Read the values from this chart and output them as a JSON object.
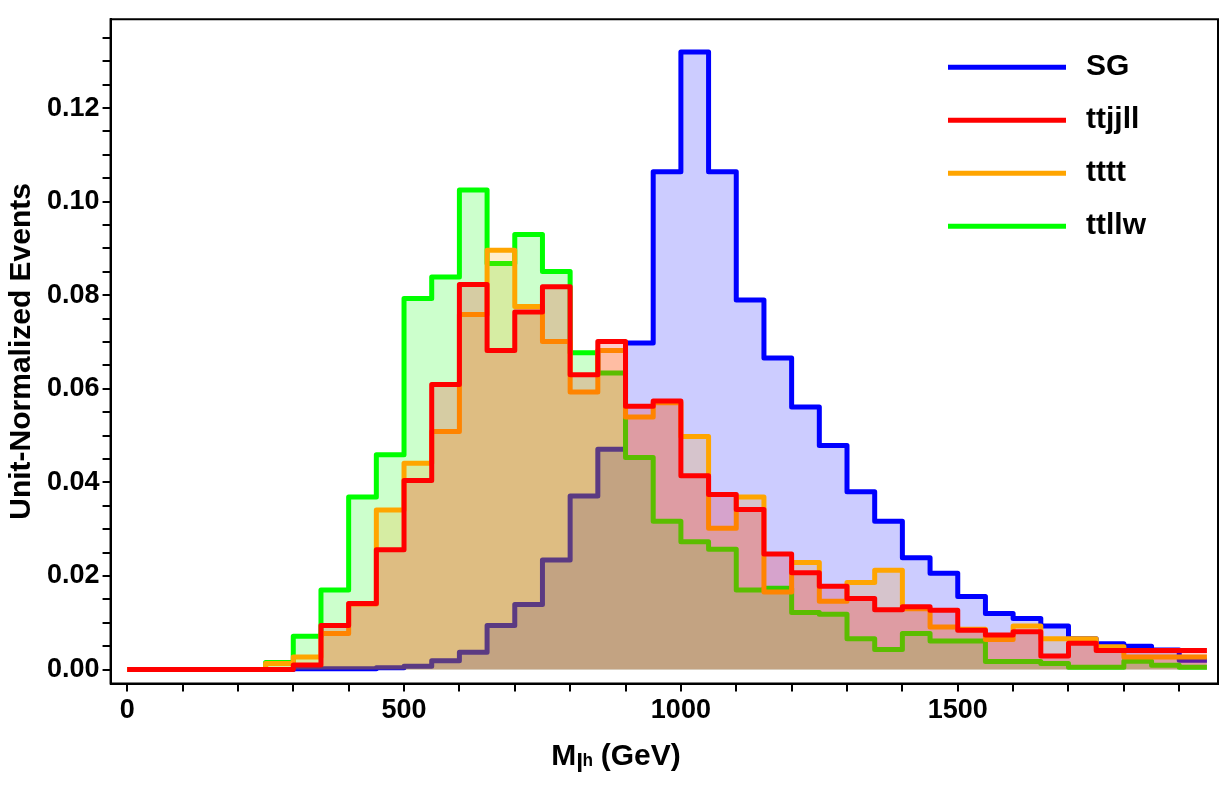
{
  "chart_data": {
    "type": "histogram",
    "xlabel": "M$_{lʰ}$ (GeV)",
    "ylabel": "Unit-Normalized Events",
    "bins": [
      0,
      50,
      100,
      150,
      200,
      250,
      300,
      350,
      400,
      450,
      500,
      550,
      600,
      650,
      700,
      750,
      800,
      850,
      900,
      950,
      1000,
      1050,
      1100,
      1150,
      1200,
      1250,
      1300,
      1350,
      1400,
      1450,
      1500,
      1550,
      1600,
      1650,
      1700,
      1750,
      1800,
      1850,
      1900,
      1950
    ],
    "series": [
      {
        "name": "SG",
        "color": "#0000ff",
        "values": [
          0,
          0,
          0,
          0,
          0,
          0,
          0.0002,
          0.0002,
          0.0002,
          0.0004,
          0.0007,
          0.0019,
          0.0037,
          0.0094,
          0.0139,
          0.0234,
          0.0371,
          0.0471,
          0.0698,
          0.1064,
          0.132,
          0.1064,
          0.079,
          0.0666,
          0.0561,
          0.0479,
          0.038,
          0.0317,
          0.0239,
          0.0206,
          0.0156,
          0.012,
          0.0109,
          0.0093,
          0.0066,
          0.0055,
          0.005,
          0.0042,
          0.002
        ]
      },
      {
        "name": "ttjjll",
        "color": "#ff0000",
        "values": [
          0,
          0,
          0,
          0,
          0,
          0,
          0.001,
          0.0094,
          0.0141,
          0.0256,
          0.0404,
          0.0609,
          0.0823,
          0.0682,
          0.0764,
          0.0818,
          0.063,
          0.0701,
          0.0563,
          0.0574,
          0.0414,
          0.0374,
          0.0342,
          0.0247,
          0.0207,
          0.0178,
          0.0152,
          0.0128,
          0.0134,
          0.0127,
          0.0084,
          0.0074,
          0.0081,
          0.0029,
          0.0056,
          0.0041,
          0.0041,
          0.0041,
          0.0041
        ]
      },
      {
        "name": "tttt",
        "color": "#ffa500",
        "values": [
          0,
          0,
          0,
          0,
          0,
          0.0013,
          0.0027,
          0.0077,
          0.014,
          0.0341,
          0.0441,
          0.0509,
          0.0759,
          0.0896,
          0.0776,
          0.0701,
          0.0593,
          0.0682,
          0.054,
          0.057,
          0.0498,
          0.0302,
          0.0369,
          0.0166,
          0.0229,
          0.0146,
          0.0186,
          0.0212,
          0.013,
          0.0091,
          0.0086,
          0.0064,
          0.0093,
          0.0066,
          0.0066,
          0.0049,
          0.0027,
          0.0027,
          0.0027
        ]
      },
      {
        "name": "ttllw",
        "color": "#00ff00",
        "values": [
          0,
          0,
          0,
          0,
          0,
          0.0015,
          0.0071,
          0.017,
          0.0369,
          0.0459,
          0.0793,
          0.0839,
          0.1025,
          0.0868,
          0.093,
          0.0851,
          0.0677,
          0.0634,
          0.0453,
          0.0317,
          0.0273,
          0.0257,
          0.017,
          0.0174,
          0.0122,
          0.0118,
          0.0066,
          0.0043,
          0.0077,
          0.0061,
          0.0061,
          0.0017,
          0.0017,
          0.0013,
          0.0005,
          0.0005,
          0.0018,
          0.0009,
          0.0005
        ]
      }
    ],
    "xlim": [
      -30,
      1970
    ],
    "xticks": [
      0,
      {
        "value": 100,
        "label": null
      },
      {
        "value": 200,
        "label": null
      },
      {
        "value": 300,
        "label": null
      },
      {
        "value": 400,
        "label": null
      },
      500,
      {
        "value": 600,
        "label": null
      },
      {
        "value": 700,
        "label": null
      },
      {
        "value": 800,
        "label": null
      },
      {
        "value": 900,
        "label": null
      },
      1000,
      {
        "value": 1100,
        "label": null
      },
      {
        "value": 1200,
        "label": null
      },
      {
        "value": 1300,
        "label": null
      },
      {
        "value": 1400,
        "label": null
      },
      1500,
      {
        "value": 1600,
        "label": null
      },
      {
        "value": 1700,
        "label": null
      },
      {
        "value": 1800,
        "label": null
      },
      {
        "value": 1900,
        "label": null
      }
    ],
    "ylim": [
      -0.003,
      0.139
    ],
    "yticks": [
      {
        "value": 0,
        "label": "0.00"
      },
      {
        "value": 0.005,
        "label": null
      },
      {
        "value": 0.01,
        "label": null
      },
      {
        "value": 0.015,
        "label": null
      },
      {
        "value": 0.02,
        "label": "0.02"
      },
      {
        "value": 0.025,
        "label": null
      },
      {
        "value": 0.03,
        "label": null
      },
      {
        "value": 0.035,
        "label": null
      },
      {
        "value": 0.04,
        "label": "0.04"
      },
      {
        "value": 0.045,
        "label": null
      },
      {
        "value": 0.05,
        "label": null
      },
      {
        "value": 0.055,
        "label": null
      },
      {
        "value": 0.06,
        "label": "0.06"
      },
      {
        "value": 0.065,
        "label": null
      },
      {
        "value": 0.07,
        "label": null
      },
      {
        "value": 0.075,
        "label": null
      },
      {
        "value": 0.08,
        "label": "0.08"
      },
      {
        "value": 0.085,
        "label": null
      },
      {
        "value": 0.09,
        "label": null
      },
      {
        "value": 0.095,
        "label": null
      },
      {
        "value": 0.1,
        "label": "0.10"
      },
      {
        "value": 0.105,
        "label": null
      },
      {
        "value": 0.11,
        "label": null
      },
      {
        "value": 0.115,
        "label": null
      },
      {
        "value": 0.12,
        "label": "0.12"
      },
      {
        "value": 0.125,
        "label": null
      },
      {
        "value": 0.13,
        "label": null
      },
      {
        "value": 0.135,
        "label": null
      }
    ],
    "grid": false,
    "legend": "top right"
  }
}
